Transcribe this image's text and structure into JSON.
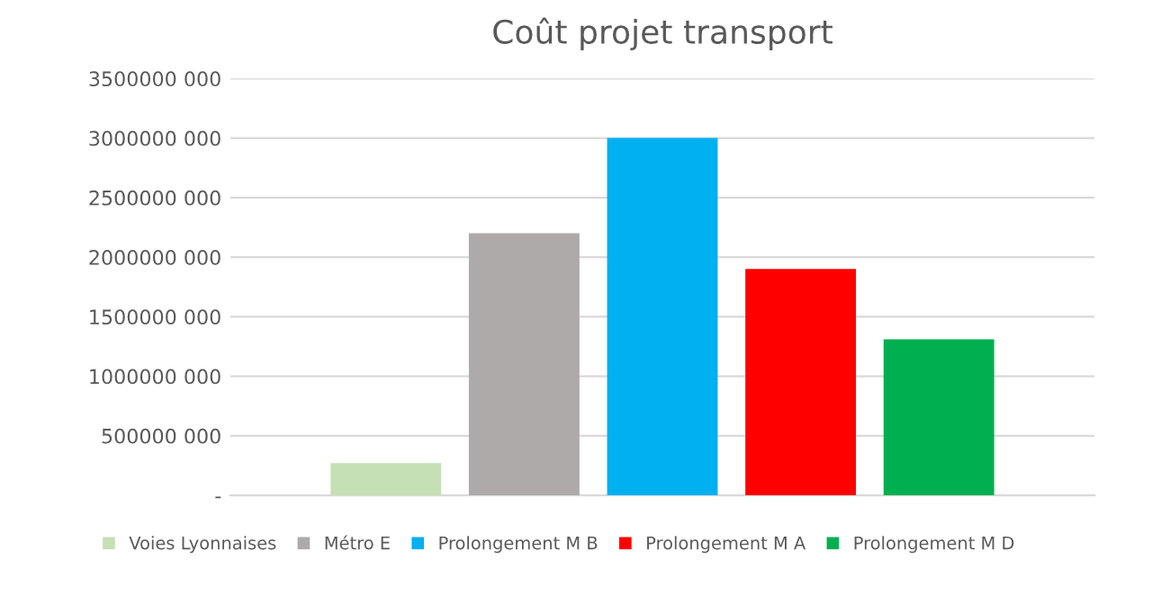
{
  "chart_data": {
    "type": "bar",
    "title": "Coût projet transport",
    "categories": [
      null
    ],
    "series": [
      {
        "name": "Voies Lyonnaises",
        "color": "#c5e0b4",
        "values": [
          270000000
        ]
      },
      {
        "name": "Métro E",
        "color": "#aeaaaa",
        "values": [
          2200000000
        ]
      },
      {
        "name": "Prolongement M B",
        "color": "#00b0f0",
        "values": [
          3000000000
        ]
      },
      {
        "name": "Prolongement M A",
        "color": "#ff0000",
        "values": [
          1900000000
        ]
      },
      {
        "name": "Prolongement M D",
        "color": "#00b050",
        "values": [
          1310000000
        ]
      }
    ],
    "ylim": [
      0,
      3500000000
    ],
    "yticks": [
      {
        "value": 0,
        "label": "-"
      },
      {
        "value": 500000000,
        "label": "500000 000"
      },
      {
        "value": 1000000000,
        "label": "1000000 000"
      },
      {
        "value": 1500000000,
        "label": "1500000 000"
      },
      {
        "value": 2000000000,
        "label": "2000000 000"
      },
      {
        "value": 2500000000,
        "label": "2500000 000"
      },
      {
        "value": 3000000000,
        "label": "3000000 000"
      },
      {
        "value": 3500000000,
        "label": "3500000 000"
      }
    ],
    "grid": "y",
    "legend": "bottom"
  }
}
